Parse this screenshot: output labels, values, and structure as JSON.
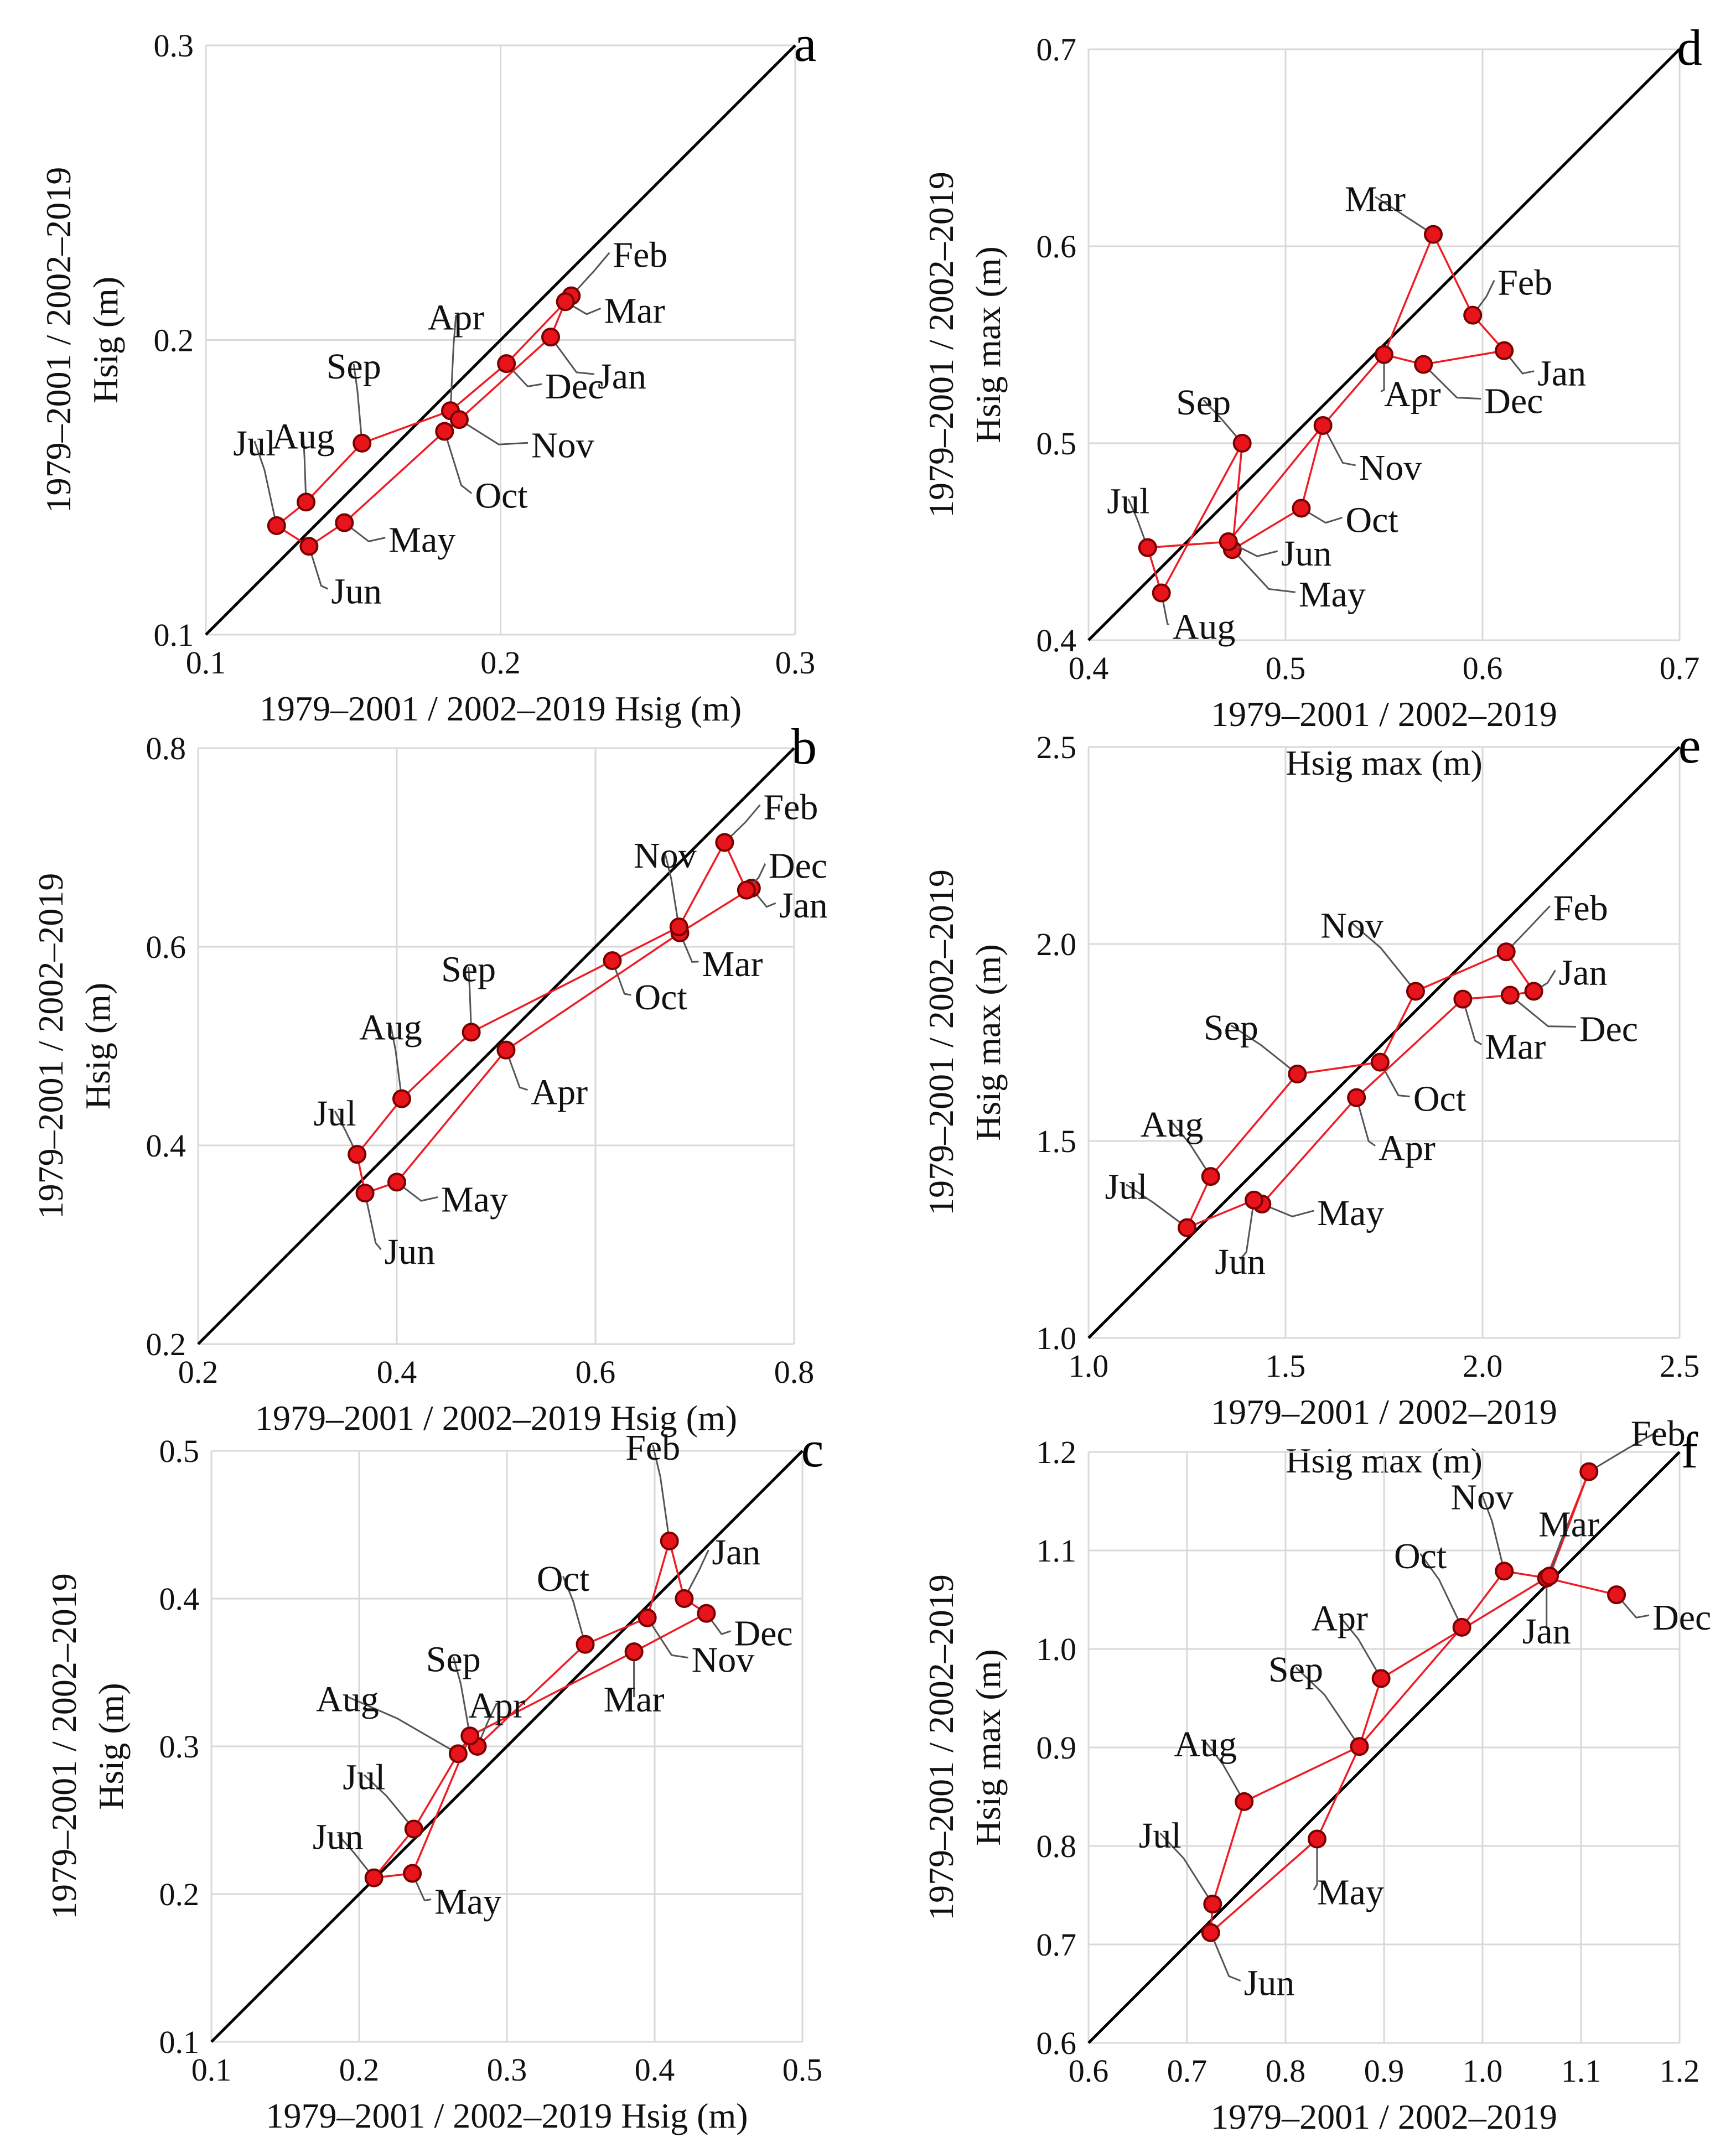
{
  "chart_data": [
    {
      "id": "a",
      "type": "scatter",
      "letter": "a",
      "xlim": [
        0.1,
        0.3
      ],
      "ylim": [
        0.1,
        0.3
      ],
      "xticks": [
        "0.1",
        "0.2",
        "0.3"
      ],
      "yticks": [
        "0.1",
        "0.2",
        "0.3"
      ],
      "xlabel": [
        "1979–2001 / 2002–2019  Hsig (m)"
      ],
      "ylabel": [
        "1979–2001 / 2002–2019",
        "Hsig (m)"
      ],
      "path_order": [
        "Jul",
        "Aug",
        "Sep",
        "Apr",
        "Dec",
        "Feb",
        "Mar",
        "Jan",
        "Nov",
        "Oct",
        "May",
        "Jun",
        "Jul"
      ],
      "points": [
        {
          "month": "Jan",
          "x": 0.217,
          "y": 0.201
        },
        {
          "month": "Feb",
          "x": 0.224,
          "y": 0.215
        },
        {
          "month": "Mar",
          "x": 0.222,
          "y": 0.213
        },
        {
          "month": "Apr",
          "x": 0.183,
          "y": 0.176
        },
        {
          "month": "May",
          "x": 0.147,
          "y": 0.138
        },
        {
          "month": "Jun",
          "x": 0.135,
          "y": 0.13
        },
        {
          "month": "Jul",
          "x": 0.124,
          "y": 0.137
        },
        {
          "month": "Aug",
          "x": 0.134,
          "y": 0.145
        },
        {
          "month": "Sep",
          "x": 0.153,
          "y": 0.165
        },
        {
          "month": "Oct",
          "x": 0.181,
          "y": 0.169
        },
        {
          "month": "Nov",
          "x": 0.186,
          "y": 0.173
        },
        {
          "month": "Dec",
          "x": 0.202,
          "y": 0.192
        }
      ]
    },
    {
      "id": "b",
      "type": "scatter",
      "letter": "b",
      "xlim": [
        0.2,
        0.8
      ],
      "ylim": [
        0.2,
        0.8
      ],
      "xticks": [
        "0.2",
        "0.4",
        "0.6",
        "0.8"
      ],
      "yticks": [
        "0.2",
        "0.4",
        "0.6",
        "0.8"
      ],
      "xlabel": [
        "1979–2001 / 2002–2019  Hsig (m)"
      ],
      "ylabel": [
        "1979–2001 / 2002–2019",
        "Hsig (m)"
      ],
      "path_order": [
        "Jul",
        "Aug",
        "Sep",
        "Oct",
        "Nov",
        "Feb",
        "Dec",
        "Jan",
        "Mar",
        "Apr",
        "May",
        "Jun",
        "Jul"
      ],
      "points": [
        {
          "month": "Jan",
          "x": 0.757,
          "y": 0.659
        },
        {
          "month": "Feb",
          "x": 0.73,
          "y": 0.705
        },
        {
          "month": "Mar",
          "x": 0.685,
          "y": 0.614
        },
        {
          "month": "Apr",
          "x": 0.51,
          "y": 0.496
        },
        {
          "month": "May",
          "x": 0.4,
          "y": 0.363
        },
        {
          "month": "Jun",
          "x": 0.368,
          "y": 0.352
        },
        {
          "month": "Jul",
          "x": 0.36,
          "y": 0.391
        },
        {
          "month": "Aug",
          "x": 0.405,
          "y": 0.447
        },
        {
          "month": "Sep",
          "x": 0.475,
          "y": 0.514
        },
        {
          "month": "Oct",
          "x": 0.617,
          "y": 0.586
        },
        {
          "month": "Nov",
          "x": 0.684,
          "y": 0.62
        },
        {
          "month": "Dec",
          "x": 0.752,
          "y": 0.657
        }
      ]
    },
    {
      "id": "c",
      "type": "scatter",
      "letter": "c",
      "xlim": [
        0.1,
        0.5
      ],
      "ylim": [
        0.1,
        0.5
      ],
      "xticks": [
        "0.1",
        "0.2",
        "0.3",
        "0.4",
        "0.5"
      ],
      "yticks": [
        "0.1",
        "0.2",
        "0.3",
        "0.4",
        "0.5"
      ],
      "xlabel": [
        "1979–2001 / 2002–2019  Hsig (m)"
      ],
      "ylabel": [
        "1979–2001 / 2002–2019",
        "Hsig (m)"
      ],
      "path_order": [
        "Jun",
        "Jul",
        "Aug",
        "Sep",
        "Apr",
        "Oct",
        "Nov",
        "Feb",
        "Jan",
        "Dec",
        "Mar",
        "Sep",
        "May",
        "Jun"
      ],
      "points": [
        {
          "month": "Jan",
          "x": 0.42,
          "y": 0.4
        },
        {
          "month": "Feb",
          "x": 0.41,
          "y": 0.439
        },
        {
          "month": "Mar",
          "x": 0.386,
          "y": 0.364
        },
        {
          "month": "Apr",
          "x": 0.28,
          "y": 0.3
        },
        {
          "month": "May",
          "x": 0.236,
          "y": 0.214
        },
        {
          "month": "Jun",
          "x": 0.21,
          "y": 0.211
        },
        {
          "month": "Jul",
          "x": 0.237,
          "y": 0.244
        },
        {
          "month": "Aug",
          "x": 0.267,
          "y": 0.295
        },
        {
          "month": "Sep",
          "x": 0.275,
          "y": 0.307
        },
        {
          "month": "Oct",
          "x": 0.353,
          "y": 0.369
        },
        {
          "month": "Nov",
          "x": 0.395,
          "y": 0.387
        },
        {
          "month": "Dec",
          "x": 0.435,
          "y": 0.39
        }
      ]
    },
    {
      "id": "d",
      "type": "scatter",
      "letter": "d",
      "xlim": [
        0.4,
        0.7
      ],
      "ylim": [
        0.4,
        0.7
      ],
      "xticks": [
        "0.4",
        "0.5",
        "0.6",
        "0.7"
      ],
      "yticks": [
        "0.4",
        "0.5",
        "0.6",
        "0.7"
      ],
      "xlabel": [
        "1979–2001 / 2002–2019",
        "Hsig max (m)"
      ],
      "ylabel": [
        "1979–2001 / 2002–2019",
        "Hsig max (m)"
      ],
      "path_order": [
        "Aug",
        "Jul",
        "Jun",
        "Nov",
        "Apr",
        "Mar",
        "Feb",
        "Jan",
        "Dec",
        "Apr",
        "Nov",
        "Oct",
        "May",
        "Sep",
        "Aug"
      ],
      "points": [
        {
          "month": "Jan",
          "x": 0.611,
          "y": 0.547
        },
        {
          "month": "Feb",
          "x": 0.595,
          "y": 0.565
        },
        {
          "month": "Mar",
          "x": 0.575,
          "y": 0.606
        },
        {
          "month": "Apr",
          "x": 0.55,
          "y": 0.545
        },
        {
          "month": "May",
          "x": 0.473,
          "y": 0.446
        },
        {
          "month": "Jun",
          "x": 0.471,
          "y": 0.45
        },
        {
          "month": "Jul",
          "x": 0.43,
          "y": 0.447
        },
        {
          "month": "Aug",
          "x": 0.437,
          "y": 0.424
        },
        {
          "month": "Sep",
          "x": 0.478,
          "y": 0.5
        },
        {
          "month": "Oct",
          "x": 0.508,
          "y": 0.467
        },
        {
          "month": "Nov",
          "x": 0.519,
          "y": 0.509
        },
        {
          "month": "Dec",
          "x": 0.57,
          "y": 0.54
        }
      ]
    },
    {
      "id": "e",
      "type": "scatter",
      "letter": "e",
      "xlim": [
        1.0,
        2.5
      ],
      "ylim": [
        1.0,
        2.5
      ],
      "xticks": [
        "1.0",
        "1.5",
        "2.0",
        "2.5"
      ],
      "yticks": [
        "1.0",
        "1.5",
        "2.0",
        "2.5"
      ],
      "xlabel": [
        "1979–2001 / 2002–2019",
        "Hsig max (m)"
      ],
      "ylabel": [
        "1979–2001 / 2002–2019",
        "Hsig max (m)"
      ],
      "path_order": [
        "Jul",
        "Aug",
        "Sep",
        "Oct",
        "Nov",
        "Feb",
        "Jan",
        "Dec",
        "Mar",
        "Apr",
        "May",
        "Jun",
        "Jul"
      ],
      "points": [
        {
          "month": "Jan",
          "x": 2.13,
          "y": 1.88
        },
        {
          "month": "Feb",
          "x": 2.06,
          "y": 1.98
        },
        {
          "month": "Mar",
          "x": 1.95,
          "y": 1.86
        },
        {
          "month": "Apr",
          "x": 1.68,
          "y": 1.61
        },
        {
          "month": "May",
          "x": 1.44,
          "y": 1.34
        },
        {
          "month": "Jun",
          "x": 1.42,
          "y": 1.35
        },
        {
          "month": "Jul",
          "x": 1.25,
          "y": 1.28
        },
        {
          "month": "Aug",
          "x": 1.31,
          "y": 1.41
        },
        {
          "month": "Sep",
          "x": 1.53,
          "y": 1.67
        },
        {
          "month": "Oct",
          "x": 1.74,
          "y": 1.7
        },
        {
          "month": "Nov",
          "x": 1.83,
          "y": 1.88
        },
        {
          "month": "Dec",
          "x": 2.07,
          "y": 1.87
        }
      ]
    },
    {
      "id": "f",
      "type": "scatter",
      "letter": "f",
      "xlim": [
        0.6,
        1.2
      ],
      "ylim": [
        0.6,
        1.2
      ],
      "xticks": [
        "0.6",
        "0.7",
        "0.8",
        "0.9",
        "1.0",
        "1.1",
        "1.2"
      ],
      "yticks": [
        "0.6",
        "0.7",
        "0.8",
        "0.9",
        "1.0",
        "1.1",
        "1.2"
      ],
      "xlabel": [
        "1979–2001 / 2002–2019",
        "Hsig max (m)"
      ],
      "ylabel": [
        "1979–2001 / 2002–2019",
        "Hsig max (m)"
      ],
      "path_order": [
        "Jun",
        "Jul",
        "Aug",
        "Sep",
        "Oct",
        "Nov",
        "Jan",
        "Dec",
        "Jan",
        "Feb",
        "Mar",
        "Apr",
        "Sep",
        "May",
        "Jun"
      ],
      "points": [
        {
          "month": "Jan",
          "x": 1.065,
          "y": 1.072
        },
        {
          "month": "Feb",
          "x": 1.108,
          "y": 1.18
        },
        {
          "month": "Mar",
          "x": 1.068,
          "y": 1.074
        },
        {
          "month": "Apr",
          "x": 0.897,
          "y": 0.97
        },
        {
          "month": "May",
          "x": 0.832,
          "y": 0.807
        },
        {
          "month": "Jun",
          "x": 0.724,
          "y": 0.712
        },
        {
          "month": "Jul",
          "x": 0.726,
          "y": 0.741
        },
        {
          "month": "Aug",
          "x": 0.758,
          "y": 0.845
        },
        {
          "month": "Sep",
          "x": 0.875,
          "y": 0.901
        },
        {
          "month": "Oct",
          "x": 0.979,
          "y": 1.022
        },
        {
          "month": "Nov",
          "x": 1.022,
          "y": 1.079
        },
        {
          "month": "Dec",
          "x": 1.136,
          "y": 1.055
        }
      ]
    }
  ]
}
